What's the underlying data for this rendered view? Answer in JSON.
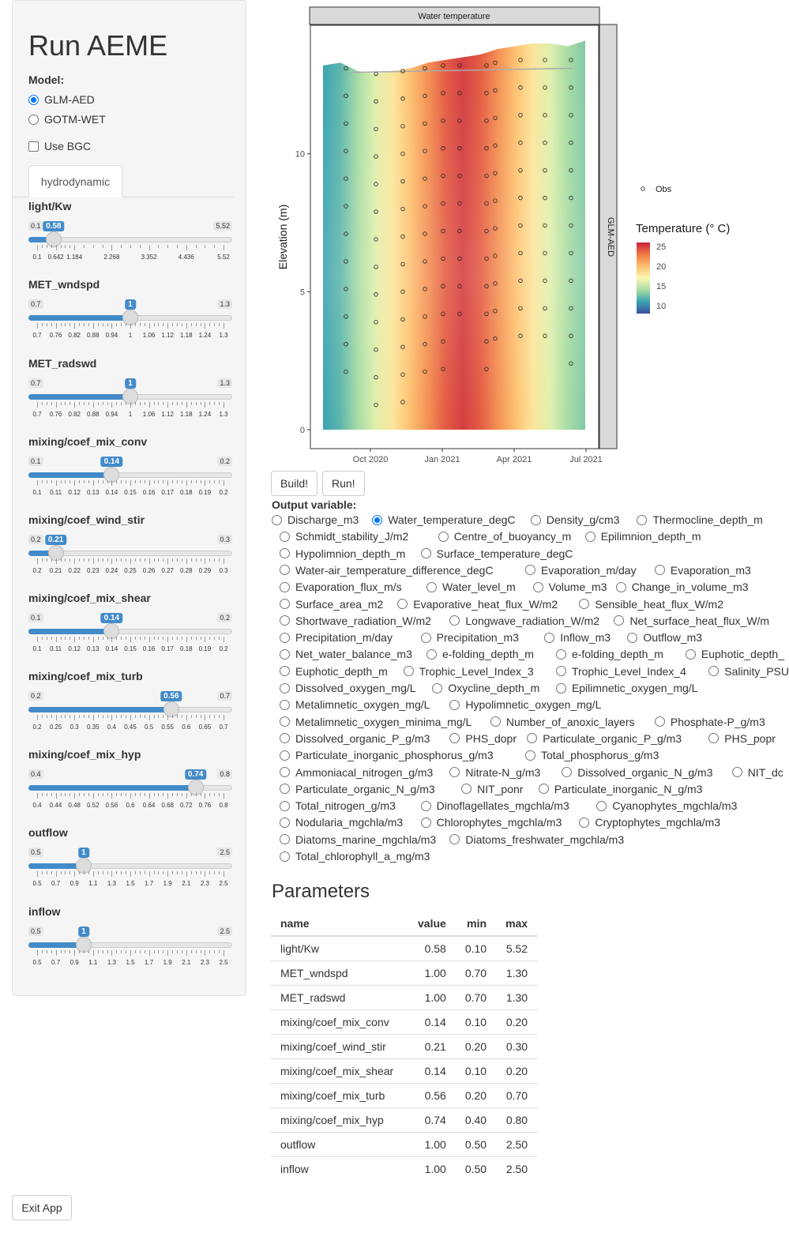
{
  "app_title": "Run AEME",
  "model": {
    "label": "Model:",
    "options": [
      {
        "label": "GLM-AED",
        "selected": true
      },
      {
        "label": "GOTM-WET",
        "selected": false
      }
    ],
    "use_bgc_label": "Use BGC",
    "use_bgc_checked": false
  },
  "tab_label": "hydrodynamic",
  "sliders": [
    {
      "name": "light/Kw",
      "min": 0.1,
      "max": 5.52,
      "value": 0.58,
      "min_label": "0.1",
      "max_label": "5.52",
      "value_label": "0.58",
      "ticks": [
        "0.1",
        "0.642",
        "1.184",
        "2.268",
        "3.352",
        "4.436",
        "5.52"
      ]
    },
    {
      "name": "MET_wndspd",
      "min": 0.7,
      "max": 1.3,
      "value": 1.0,
      "min_label": "0.7",
      "max_label": "1.3",
      "value_label": "1",
      "ticks": [
        "0.7",
        "0.76",
        "0.82",
        "0.88",
        "0.94",
        "1",
        "1.06",
        "1.12",
        "1.18",
        "1.24",
        "1.3"
      ]
    },
    {
      "name": "MET_radswd",
      "min": 0.7,
      "max": 1.3,
      "value": 1.0,
      "min_label": "0.7",
      "max_label": "1.3",
      "value_label": "1",
      "ticks": [
        "0.7",
        "0.76",
        "0.82",
        "0.88",
        "0.94",
        "1",
        "1.06",
        "1.12",
        "1.18",
        "1.24",
        "1.3"
      ]
    },
    {
      "name": "mixing/coef_mix_conv",
      "min": 0.1,
      "max": 0.2,
      "value": 0.14,
      "min_label": "0.1",
      "max_label": "0.2",
      "value_label": "0.14",
      "ticks": [
        "0.1",
        "0.11",
        "0.12",
        "0.13",
        "0.14",
        "0.15",
        "0.16",
        "0.17",
        "0.18",
        "0.19",
        "0.2"
      ]
    },
    {
      "name": "mixing/coef_wind_stir",
      "min": 0.2,
      "max": 0.3,
      "value": 0.21,
      "min_label": "0.2",
      "max_label": "0.3",
      "value_label": "0.21",
      "ticks": [
        "0.2",
        "0.21",
        "0.22",
        "0.23",
        "0.24",
        "0.25",
        "0.26",
        "0.27",
        "0.28",
        "0.29",
        "0.3"
      ]
    },
    {
      "name": "mixing/coef_mix_shear",
      "min": 0.1,
      "max": 0.2,
      "value": 0.14,
      "min_label": "0.1",
      "max_label": "0.2",
      "value_label": "0.14",
      "ticks": [
        "0.1",
        "0.11",
        "0.12",
        "0.13",
        "0.14",
        "0.15",
        "0.16",
        "0.17",
        "0.18",
        "0.19",
        "0.2"
      ]
    },
    {
      "name": "mixing/coef_mix_turb",
      "min": 0.2,
      "max": 0.7,
      "value": 0.56,
      "min_label": "0.2",
      "max_label": "0.7",
      "value_label": "0.56",
      "ticks": [
        "0.2",
        "0.25",
        "0.3",
        "0.35",
        "0.4",
        "0.45",
        "0.5",
        "0.55",
        "0.6",
        "0.65",
        "0.7"
      ]
    },
    {
      "name": "mixing/coef_mix_hyp",
      "min": 0.4,
      "max": 0.8,
      "value": 0.74,
      "min_label": "0.4",
      "max_label": "0.8",
      "value_label": "0.74",
      "ticks": [
        "0.4",
        "0.44",
        "0.48",
        "0.52",
        "0.56",
        "0.6",
        "0.64",
        "0.68",
        "0.72",
        "0.76",
        "0.8"
      ]
    },
    {
      "name": "outflow",
      "min": 0.5,
      "max": 2.5,
      "value": 1.0,
      "min_label": "0.5",
      "max_label": "2.5",
      "value_label": "1",
      "ticks": [
        "0.5",
        "0.7",
        "0.9",
        "1.1",
        "1.3",
        "1.5",
        "1.7",
        "1.9",
        "2.1",
        "2.3",
        "2.5"
      ]
    },
    {
      "name": "inflow",
      "min": 0.5,
      "max": 2.5,
      "value": 1.0,
      "min_label": "0.5",
      "max_label": "2.5",
      "value_label": "1",
      "ticks": [
        "0.5",
        "0.7",
        "0.9",
        "1.1",
        "1.3",
        "1.5",
        "1.7",
        "1.9",
        "2.1",
        "2.3",
        "2.5"
      ]
    }
  ],
  "buttons": {
    "build": "Build!",
    "run": "Run!",
    "exit": "Exit App"
  },
  "output_variable": {
    "label": "Output variable:",
    "rows": [
      [
        "Discharge_m3",
        "Water_temperature_degC",
        "Density_g/cm3",
        "Thermocline_depth_m"
      ],
      [
        "Schmidt_stability_J/m2",
        "Centre_of_buoyancy_m",
        "Epilimnion_depth_m"
      ],
      [
        "Hypolimnion_depth_m",
        "Surface_temperature_degC"
      ],
      [
        "Water-air_temperature_difference_degC",
        "Evaporation_m/day",
        "Evaporation_m3"
      ],
      [
        "Evaporation_flux_m/s",
        "Water_level_m",
        "Volume_m3",
        "Change_in_volume_m3"
      ],
      [
        "Surface_area_m2",
        "Evaporative_heat_flux_W/m2",
        "Sensible_heat_flux_W/m2"
      ],
      [
        "Shortwave_radiation_W/m2",
        "Longwave_radiation_W/m2",
        "Net_surface_heat_flux_W/m"
      ],
      [
        "Precipitation_m/day",
        "Precipitation_m3",
        "Inflow_m3",
        "Outflow_m3"
      ],
      [
        "Net_water_balance_m3",
        "e-folding_depth_m",
        "e-folding_depth_m",
        "Euphotic_depth_"
      ],
      [
        "Euphotic_depth_m",
        "Trophic_Level_Index_3",
        "Trophic_Level_Index_4",
        "Salinity_PSU"
      ],
      [
        "Dissolved_oxygen_mg/L",
        "Oxycline_depth_m",
        "Epilimnetic_oxygen_mg/L"
      ],
      [
        "Metalimnetic_oxygen_mg/L",
        "Hypolimnetic_oxygen_mg/L"
      ],
      [
        "Metalimnetic_oxygen_minima_mg/L",
        "Number_of_anoxic_layers",
        "Phosphate-P_g/m3"
      ],
      [
        "Dissolved_organic_P_g/m3",
        "PHS_dopr",
        "Particulate_organic_P_g/m3",
        "PHS_popr"
      ],
      [
        "Particulate_inorganic_phosphorus_g/m3",
        "Total_phosphorus_g/m3"
      ],
      [
        "Ammoniacal_nitrogen_g/m3",
        "Nitrate-N_g/m3",
        "Dissolved_organic_N_g/m3",
        "NIT_dc"
      ],
      [
        "Particulate_organic_N_g/m3",
        "NIT_ponr",
        "Particulate_inorganic_N_g/m3"
      ],
      [
        "Total_nitrogen_g/m3",
        "Dinoflagellates_mgchla/m3",
        "Cyanophytes_mgchla/m3"
      ],
      [
        "Nodularia_mgchla/m3",
        "Chlorophytes_mgchla/m3",
        "Cryptophytes_mgchla/m3"
      ],
      [
        "Diatoms_marine_mgchla/m3",
        "Diatoms_freshwater_mgchla/m3"
      ],
      [
        "Total_chlorophyll_a_mg/m3"
      ]
    ],
    "selected": "Water_temperature_degC"
  },
  "parameters": {
    "title": "Parameters",
    "columns": [
      "name",
      "value",
      "min",
      "max"
    ],
    "rows": [
      [
        "light/Kw",
        "0.58",
        "0.10",
        "5.52"
      ],
      [
        "MET_wndspd",
        "1.00",
        "0.70",
        "1.30"
      ],
      [
        "MET_radswd",
        "1.00",
        "0.70",
        "1.30"
      ],
      [
        "mixing/coef_mix_conv",
        "0.14",
        "0.10",
        "0.20"
      ],
      [
        "mixing/coef_wind_stir",
        "0.21",
        "0.20",
        "0.30"
      ],
      [
        "mixing/coef_mix_shear",
        "0.14",
        "0.10",
        "0.20"
      ],
      [
        "mixing/coef_mix_turb",
        "0.56",
        "0.20",
        "0.70"
      ],
      [
        "mixing/coef_mix_hyp",
        "0.74",
        "0.40",
        "0.80"
      ],
      [
        "outflow",
        "1.00",
        "0.50",
        "2.50"
      ],
      [
        "inflow",
        "1.00",
        "0.50",
        "2.50"
      ]
    ]
  },
  "chart_data": {
    "type": "heatmap",
    "title": "Water temperature",
    "facet": "GLM-AED",
    "ylabel": "Elevation (m)",
    "xlabel": "",
    "x_ticks": [
      "Oct 2020",
      "Jan 2021",
      "Apr 2021",
      "Jul 2021"
    ],
    "y_ticks": [
      0,
      5,
      10
    ],
    "ylim": [
      0,
      14.2
    ],
    "legend_obs": "Obs",
    "colorbar_title": "Temperature (° C)",
    "colorbar_ticks": [
      10,
      15,
      20,
      25
    ],
    "colors": [
      "#3b4fa0",
      "#3aa3b0",
      "#a8dca4",
      "#fbf8b0",
      "#fdc070",
      "#f07844",
      "#c8203f"
    ],
    "surface_temperature_series": [
      11,
      12,
      14,
      16,
      18,
      20,
      22,
      24,
      25,
      24,
      22,
      20,
      18,
      16,
      14,
      13
    ],
    "obs_x_months": [
      "Sep 2020",
      "Oct 2020",
      "Nov 2020",
      "Dec 2020",
      "Jan 2021",
      "Feb 2021",
      "Mar 2021",
      "Apr 2021",
      "May 2021",
      "Jun 2021"
    ]
  }
}
